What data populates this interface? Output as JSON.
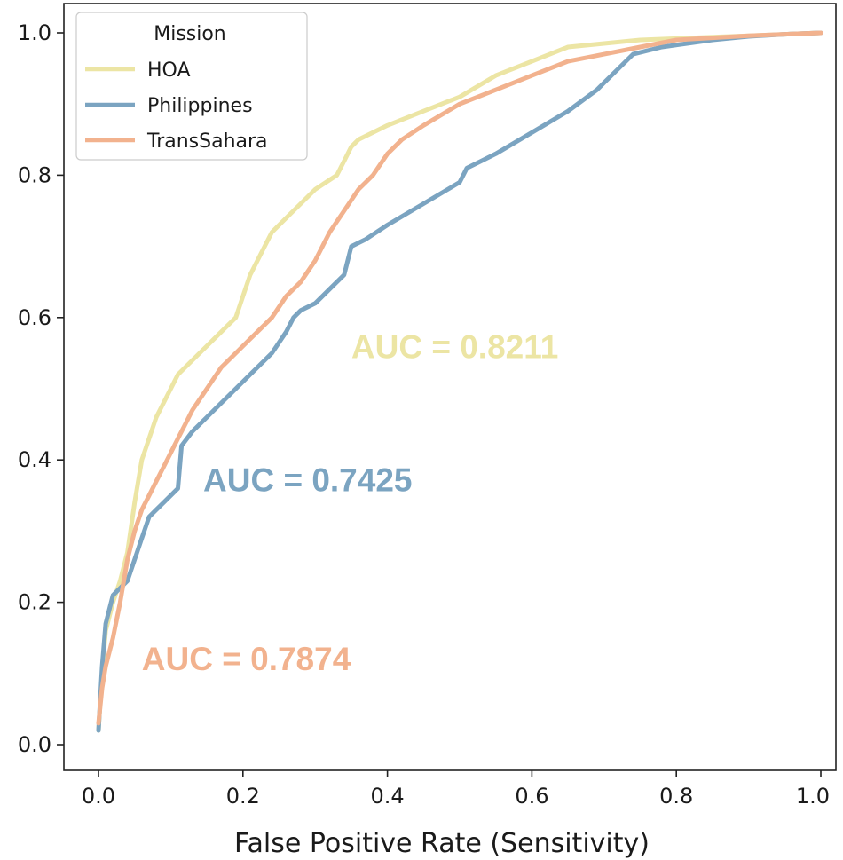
{
  "chart_data": {
    "type": "line",
    "title": "",
    "xlabel": "False Positive Rate (Sensitivity)",
    "ylabel": "",
    "xlim": [
      0.0,
      1.0
    ],
    "ylim": [
      0.0,
      1.0
    ],
    "xticks": [
      "0.0",
      "0.2",
      "0.4",
      "0.6",
      "0.8",
      "1.0"
    ],
    "yticks": [
      "0.0",
      "0.2",
      "0.4",
      "0.6",
      "0.8",
      "1.0"
    ],
    "grid": false,
    "legend": {
      "title": "Mission",
      "placement": "top-left"
    },
    "series": [
      {
        "name": "HOA",
        "color": "#ece5a4",
        "x": [
          0.0,
          0.005,
          0.01,
          0.02,
          0.03,
          0.04,
          0.05,
          0.06,
          0.07,
          0.08,
          0.09,
          0.1,
          0.11,
          0.13,
          0.15,
          0.17,
          0.19,
          0.2,
          0.21,
          0.22,
          0.23,
          0.24,
          0.26,
          0.28,
          0.3,
          0.33,
          0.34,
          0.35,
          0.36,
          0.4,
          0.45,
          0.5,
          0.55,
          0.6,
          0.65,
          0.7,
          0.75,
          0.8,
          0.85,
          0.9,
          0.95,
          1.0
        ],
        "y": [
          0.02,
          0.1,
          0.16,
          0.2,
          0.23,
          0.27,
          0.34,
          0.4,
          0.43,
          0.46,
          0.48,
          0.5,
          0.52,
          0.54,
          0.56,
          0.58,
          0.6,
          0.63,
          0.66,
          0.68,
          0.7,
          0.72,
          0.74,
          0.76,
          0.78,
          0.8,
          0.82,
          0.84,
          0.85,
          0.87,
          0.89,
          0.91,
          0.94,
          0.96,
          0.98,
          0.985,
          0.99,
          0.992,
          0.994,
          0.996,
          0.998,
          1.0
        ]
      },
      {
        "name": "Philippines",
        "color": "#7ba4c1",
        "x": [
          0.0,
          0.005,
          0.01,
          0.02,
          0.03,
          0.04,
          0.05,
          0.06,
          0.07,
          0.08,
          0.09,
          0.1,
          0.11,
          0.115,
          0.13,
          0.15,
          0.17,
          0.19,
          0.21,
          0.24,
          0.26,
          0.27,
          0.28,
          0.3,
          0.32,
          0.34,
          0.35,
          0.37,
          0.4,
          0.45,
          0.5,
          0.51,
          0.53,
          0.55,
          0.6,
          0.65,
          0.69,
          0.7,
          0.72,
          0.74,
          0.78,
          0.85,
          0.9,
          0.95,
          1.0
        ],
        "y": [
          0.02,
          0.11,
          0.17,
          0.21,
          0.22,
          0.23,
          0.26,
          0.29,
          0.32,
          0.33,
          0.34,
          0.35,
          0.36,
          0.42,
          0.44,
          0.46,
          0.48,
          0.5,
          0.52,
          0.55,
          0.58,
          0.6,
          0.61,
          0.62,
          0.64,
          0.66,
          0.7,
          0.71,
          0.73,
          0.76,
          0.79,
          0.81,
          0.82,
          0.83,
          0.86,
          0.89,
          0.92,
          0.93,
          0.95,
          0.97,
          0.98,
          0.99,
          0.995,
          0.998,
          1.0
        ]
      },
      {
        "name": "TransSahara",
        "color": "#f2b28e",
        "x": [
          0.0,
          0.005,
          0.01,
          0.02,
          0.03,
          0.04,
          0.05,
          0.06,
          0.07,
          0.08,
          0.09,
          0.1,
          0.11,
          0.12,
          0.13,
          0.15,
          0.17,
          0.19,
          0.21,
          0.24,
          0.26,
          0.28,
          0.3,
          0.32,
          0.34,
          0.36,
          0.38,
          0.4,
          0.42,
          0.45,
          0.5,
          0.55,
          0.6,
          0.65,
          0.7,
          0.75,
          0.8,
          0.85,
          0.9,
          0.95,
          1.0
        ],
        "y": [
          0.03,
          0.08,
          0.11,
          0.15,
          0.2,
          0.26,
          0.3,
          0.33,
          0.35,
          0.37,
          0.39,
          0.41,
          0.43,
          0.45,
          0.47,
          0.5,
          0.53,
          0.55,
          0.57,
          0.6,
          0.63,
          0.65,
          0.68,
          0.72,
          0.75,
          0.78,
          0.8,
          0.83,
          0.85,
          0.87,
          0.9,
          0.92,
          0.94,
          0.96,
          0.97,
          0.98,
          0.99,
          0.993,
          0.996,
          0.998,
          1.0
        ]
      }
    ],
    "annotations": [
      {
        "text": "AUC = 0.8211",
        "color": "#ece5a4",
        "x": 0.35,
        "y": 0.555
      },
      {
        "text": "AUC = 0.7425",
        "color": "#7ba4c1",
        "x": 0.145,
        "y": 0.368
      },
      {
        "text": "AUC = 0.7874",
        "color": "#f2b28e",
        "x": 0.06,
        "y": 0.117
      }
    ]
  }
}
